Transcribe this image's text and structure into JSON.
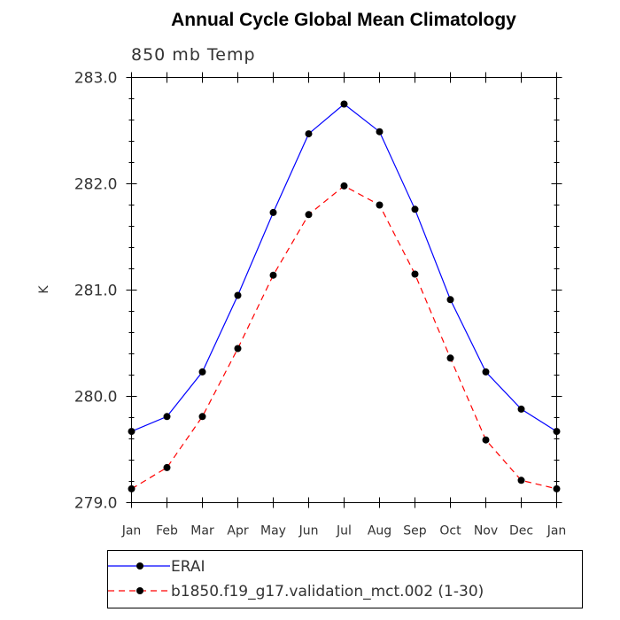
{
  "chart_data": {
    "type": "line",
    "title": "Annual Cycle Global Mean Climatology",
    "subtitle": "850 mb Temp",
    "xlabel": "",
    "ylabel": "K",
    "categories": [
      "Jan",
      "Feb",
      "Mar",
      "Apr",
      "May",
      "Jun",
      "Jul",
      "Aug",
      "Sep",
      "Oct",
      "Nov",
      "Dec",
      "Jan"
    ],
    "yticks": [
      "279.0",
      "280.0",
      "281.0",
      "282.0",
      "283.0"
    ],
    "ylim": [
      279.0,
      283.0
    ],
    "grid": false,
    "legend_position": "bottom",
    "series": [
      {
        "name": "ERAI",
        "color": "#0000ff",
        "line_style": "solid",
        "marker": "filled-circle",
        "values": [
          279.67,
          279.81,
          280.23,
          280.95,
          281.73,
          282.47,
          282.75,
          282.49,
          281.76,
          280.91,
          280.23,
          279.88,
          279.67
        ]
      },
      {
        "name": "b1850.f19_g17.validation_mct.002 (1-30)",
        "color": "#ff0000",
        "line_style": "dashed",
        "marker": "filled-circle",
        "values": [
          279.13,
          279.33,
          279.81,
          280.45,
          281.14,
          281.71,
          281.98,
          281.8,
          281.15,
          280.36,
          279.59,
          279.21,
          279.13
        ]
      }
    ]
  }
}
